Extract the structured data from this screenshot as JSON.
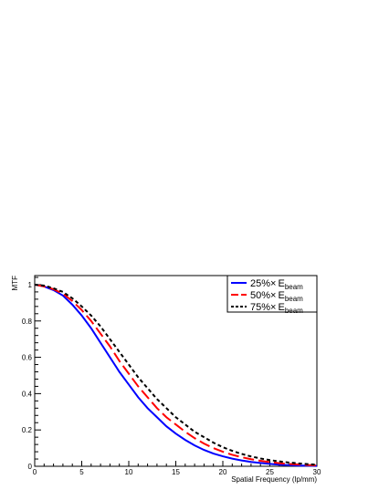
{
  "chart_data": {
    "type": "line",
    "xlabel": "Spatial Frequency (lp/mm)",
    "ylabel": "MTF",
    "xlim": [
      0,
      30
    ],
    "ylim": [
      0,
      1.05
    ],
    "x_ticks": [
      0,
      5,
      10,
      15,
      20,
      25,
      30
    ],
    "x_tick_labels": [
      "0",
      "5",
      "10",
      "15",
      "20",
      "25",
      "30"
    ],
    "y_ticks": [
      0,
      0.2,
      0.4,
      0.6,
      0.8,
      1
    ],
    "y_tick_labels": [
      "0",
      "0.2",
      "0.4",
      "0.6",
      "0.8",
      "1"
    ],
    "grid": false,
    "legend_position": "top-right",
    "series": [
      {
        "name": "25%× E_beam",
        "legend_main": "25%",
        "legend_times": "×",
        "legend_E": "E",
        "legend_sub": "beam",
        "color": "#0000ff",
        "dash": "solid",
        "x": [
          0,
          1,
          2,
          3,
          4,
          5,
          6,
          7,
          8,
          9,
          10,
          11,
          12,
          13,
          14,
          15,
          16,
          17,
          18,
          19,
          20,
          21,
          22,
          23,
          24,
          25,
          26,
          27,
          28,
          29,
          30
        ],
        "y": [
          1.0,
          0.99,
          0.97,
          0.94,
          0.89,
          0.83,
          0.76,
          0.68,
          0.6,
          0.52,
          0.45,
          0.38,
          0.32,
          0.27,
          0.22,
          0.18,
          0.145,
          0.115,
          0.09,
          0.07,
          0.055,
          0.042,
          0.032,
          0.024,
          0.018,
          0.013,
          0.009,
          0.006,
          0.004,
          0.003,
          0.002
        ]
      },
      {
        "name": "50%× E_beam",
        "legend_main": "50%",
        "legend_times": "×",
        "legend_E": "E",
        "legend_sub": "beam",
        "color": "#ff0000",
        "dash": "long-dash",
        "x": [
          0,
          1,
          2,
          3,
          4,
          5,
          6,
          7,
          8,
          9,
          10,
          11,
          12,
          13,
          14,
          15,
          16,
          17,
          18,
          19,
          20,
          21,
          22,
          23,
          24,
          25,
          26,
          27,
          28,
          29,
          30
        ],
        "y": [
          1.0,
          0.99,
          0.975,
          0.95,
          0.91,
          0.86,
          0.8,
          0.73,
          0.66,
          0.58,
          0.51,
          0.44,
          0.38,
          0.32,
          0.27,
          0.23,
          0.19,
          0.155,
          0.125,
          0.1,
          0.08,
          0.063,
          0.05,
          0.039,
          0.03,
          0.023,
          0.017,
          0.013,
          0.01,
          0.007,
          0.005
        ]
      },
      {
        "name": "75%× E_beam",
        "legend_main": "75%",
        "legend_times": "×",
        "legend_E": "E",
        "legend_sub": "beam",
        "color": "#000000",
        "dash": "short-dash",
        "x": [
          0,
          1,
          2,
          3,
          4,
          5,
          6,
          7,
          8,
          9,
          10,
          11,
          12,
          13,
          14,
          15,
          16,
          17,
          18,
          19,
          20,
          21,
          22,
          23,
          24,
          25,
          26,
          27,
          28,
          29,
          30
        ],
        "y": [
          1.0,
          0.995,
          0.98,
          0.96,
          0.925,
          0.88,
          0.83,
          0.77,
          0.7,
          0.63,
          0.56,
          0.49,
          0.43,
          0.37,
          0.32,
          0.27,
          0.23,
          0.19,
          0.16,
          0.13,
          0.105,
          0.085,
          0.068,
          0.054,
          0.043,
          0.034,
          0.027,
          0.021,
          0.016,
          0.012,
          0.009
        ]
      }
    ]
  }
}
